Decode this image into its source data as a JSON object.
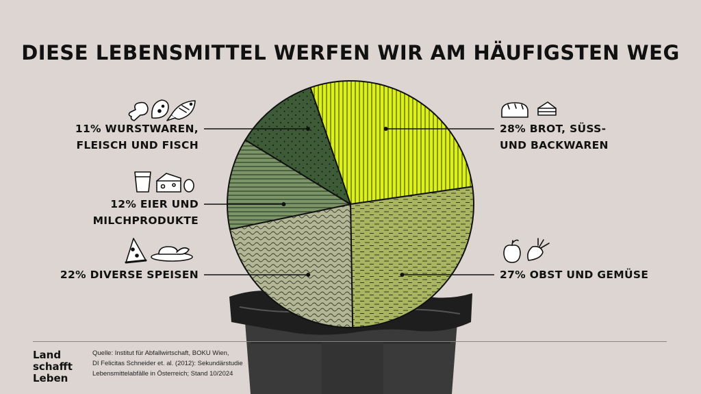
{
  "title": "DIESE LEBENSMITTEL WERFEN WIR AM HÄUFIGSTEN WEG",
  "chart_data": {
    "type": "pie",
    "start_angle_deg": -19,
    "direction": "clockwise",
    "slices": [
      {
        "label_lines": [
          "28% BROT, SÜSS-",
          "UND BACKWAREN"
        ],
        "value": 28,
        "color": "#dcf01e",
        "pattern": "vertical-lines",
        "icons": [
          "bread-icon",
          "cake-slice-icon"
        ]
      },
      {
        "label_lines": [
          "27% OBST UND GEMÜSE"
        ],
        "value": 27,
        "color": "#aab561",
        "pattern": "dashes",
        "icons": [
          "apple-icon",
          "beet-icon"
        ]
      },
      {
        "label_lines": [
          "22% DIVERSE SPEISEN"
        ],
        "value": 22,
        "color": "#b3b796",
        "pattern": "waves",
        "icons": [
          "pizza-icon",
          "roast-platter-icon"
        ]
      },
      {
        "label_lines": [
          "12% EIER UND",
          "MILCHPRODUKTE"
        ],
        "value": 12,
        "color": "#7b9568",
        "pattern": "horizontal-lines",
        "icons": [
          "cup-icon",
          "cheese-icon",
          "egg-icon"
        ]
      },
      {
        "label_lines": [
          "11% WURSTWAREN,",
          "FLEISCH UND FISCH"
        ],
        "value": 11,
        "color": "#3e5b37",
        "pattern": "dots",
        "icons": [
          "drumstick-icon",
          "sausage-icon",
          "fish-icon"
        ]
      }
    ]
  },
  "logo": [
    "Land",
    "schafft",
    "Leben"
  ],
  "source": [
    "Quelle: Institut für Abfallwirtschaft, BOKU Wien,",
    "DI Felicitas Schneider et. al. (2012): Sekundärstudie",
    "Lebensmittelabfälle in Österreich; Stand 10/2024"
  ]
}
